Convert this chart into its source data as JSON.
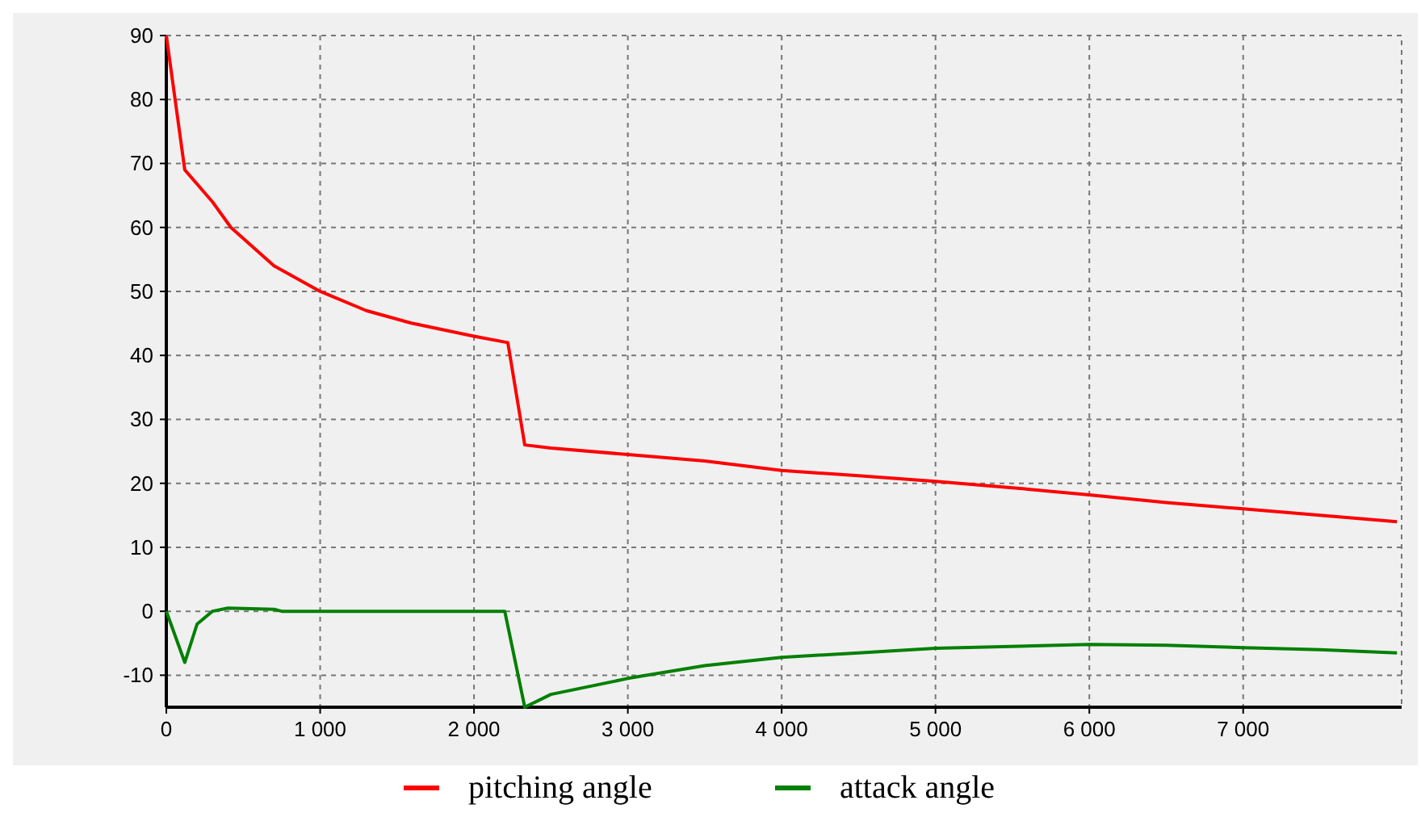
{
  "chart_data": {
    "type": "line",
    "xlim": [
      0,
      8030
    ],
    "ylim": [
      -15,
      90
    ],
    "xticks": [
      0,
      {
        "value": 1000,
        "label": "1 000"
      },
      {
        "value": 2000,
        "label": "2 000"
      },
      {
        "value": 3000,
        "label": "3 000"
      },
      {
        "value": 4000,
        "label": "4 000"
      },
      {
        "value": 5000,
        "label": "5 000"
      },
      {
        "value": 6000,
        "label": "6 000"
      },
      {
        "value": 7000,
        "label": "7 000"
      }
    ],
    "yticks": [
      -10,
      0,
      10,
      20,
      30,
      40,
      50,
      60,
      70,
      80,
      90
    ],
    "grid": true,
    "legend": "bottom",
    "marker": "none",
    "line_style": "solid",
    "series": [
      {
        "name": "pitching angle",
        "color": "#ff0000",
        "x": [
          0,
          120,
          300,
          420,
          700,
          1000,
          1300,
          1600,
          1800,
          2000,
          2220,
          2330,
          2500,
          3000,
          3500,
          4000,
          4500,
          5000,
          5500,
          6000,
          6500,
          7000,
          7500,
          8000
        ],
        "values": [
          90,
          69,
          64,
          60,
          54,
          50,
          47,
          45,
          44,
          43,
          42,
          26,
          25.5,
          24.5,
          23.5,
          22,
          21.2,
          20.3,
          19.3,
          18.2,
          17,
          16,
          15,
          14
        ]
      },
      {
        "name": "attack angle",
        "color": "#008000",
        "x": [
          0,
          120,
          200,
          300,
          400,
          700,
          750,
          2200,
          2330,
          2500,
          3000,
          3500,
          4000,
          4500,
          5000,
          6000,
          6500,
          7000,
          7500,
          8000
        ],
        "values": [
          0,
          -8,
          -2,
          0,
          0.5,
          0.3,
          0,
          0,
          -15,
          -13,
          -10.5,
          -8.5,
          -7.2,
          -6.5,
          -5.8,
          -5.2,
          -5.3,
          -5.7,
          -6,
          -6.5
        ]
      }
    ]
  }
}
